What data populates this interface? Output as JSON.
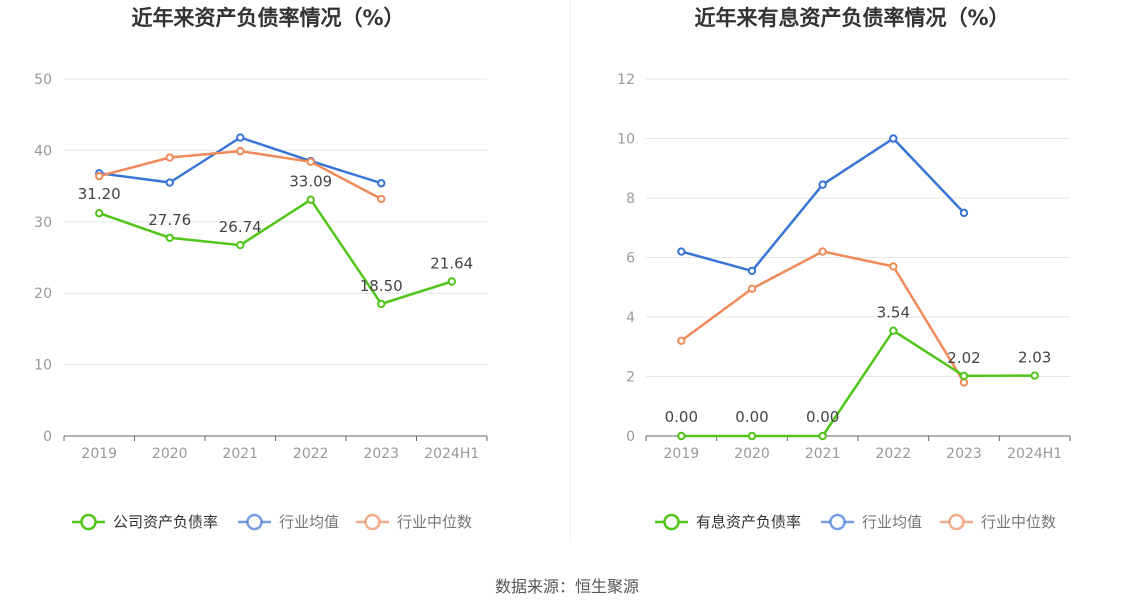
{
  "source_text": "数据来源：恒生聚源",
  "chart_data": [
    {
      "type": "line",
      "title": "近年来资产负债率情况（%）",
      "categories": [
        "2019",
        "2020",
        "2021",
        "2022",
        "2023",
        "2024H1"
      ],
      "ylim": [
        0,
        50
      ],
      "yticks": [
        "0",
        "10",
        "20",
        "30",
        "40",
        "50"
      ],
      "grid": true,
      "legend_position": "bottom",
      "series": [
        {
          "name": "公司资产负债率",
          "color": "#52c41a",
          "values": [
            31.2,
            27.76,
            26.74,
            33.09,
            18.5,
            21.64
          ],
          "labels": [
            "31.20",
            "27.76",
            "26.74",
            "33.09",
            "18.50",
            "21.64"
          ]
        },
        {
          "name": "行业均值",
          "color": "#3a75d6",
          "values": [
            36.8,
            35.5,
            41.8,
            38.5,
            35.4,
            null
          ]
        },
        {
          "name": "行业中位数",
          "color": "#ef8a5a",
          "values": [
            36.4,
            39.0,
            39.9,
            38.4,
            33.2,
            null
          ]
        }
      ]
    },
    {
      "type": "line",
      "title": "近年来有息资产负债率情况（%）",
      "categories": [
        "2019",
        "2020",
        "2021",
        "2022",
        "2023",
        "2024H1"
      ],
      "ylim": [
        0,
        12
      ],
      "yticks": [
        "0",
        "2",
        "4",
        "6",
        "8",
        "10",
        "12"
      ],
      "grid": true,
      "legend_position": "bottom",
      "series": [
        {
          "name": "有息资产负债率",
          "color": "#52c41a",
          "values": [
            0.0,
            0.0,
            0.0,
            3.54,
            2.02,
            2.03
          ],
          "labels": [
            "0.00",
            "0.00",
            "0.00",
            "3.54",
            "2.02",
            "2.03"
          ]
        },
        {
          "name": "行业均值",
          "color": "#3a75d6",
          "values": [
            6.2,
            5.55,
            8.45,
            10.0,
            7.5,
            null
          ]
        },
        {
          "name": "行业中位数",
          "color": "#ef8a5a",
          "values": [
            3.2,
            4.95,
            6.2,
            5.7,
            1.8,
            null
          ]
        }
      ]
    }
  ]
}
